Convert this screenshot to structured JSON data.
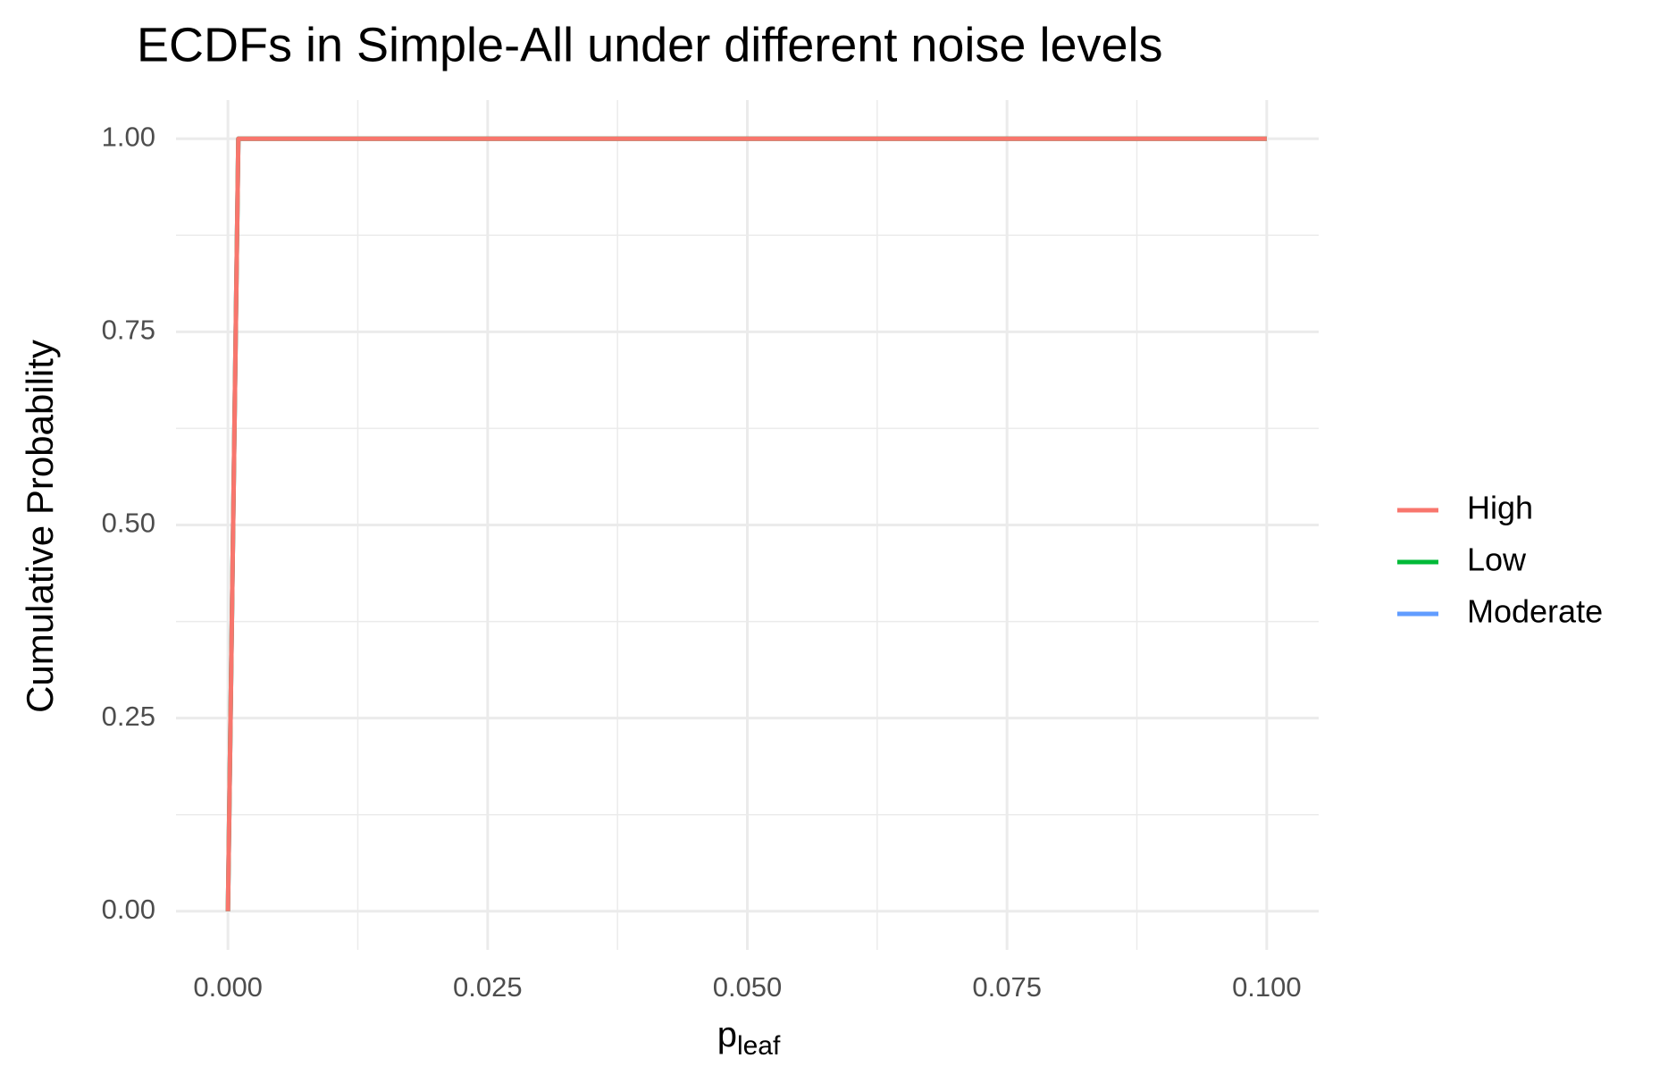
{
  "chart_data": {
    "type": "line",
    "title": "ECDFs in Simple-All under different noise levels",
    "xlabel": "p",
    "xlabel_subscript": "leaf",
    "ylabel": "Cumulative Probability",
    "x": [
      0,
      0.001,
      0.1
    ],
    "series": [
      {
        "name": "High",
        "color": "#f8766d",
        "values": [
          0,
          1,
          1
        ]
      },
      {
        "name": "Low",
        "color": "#00ba38",
        "values": [
          0,
          1,
          1
        ]
      },
      {
        "name": "Moderate",
        "color": "#619cff",
        "values": [
          0,
          1,
          1
        ]
      }
    ],
    "xlim": [
      -0.005,
      0.105
    ],
    "ylim": [
      -0.05,
      1.05
    ],
    "xticks": [
      {
        "value": 0,
        "label": "0.000"
      },
      {
        "value": 0.025,
        "label": "0.025"
      },
      {
        "value": 0.05,
        "label": "0.050"
      },
      {
        "value": 0.075,
        "label": "0.075"
      },
      {
        "value": 0.1,
        "label": "0.100"
      }
    ],
    "yticks": [
      {
        "value": 0,
        "label": "0.00"
      },
      {
        "value": 0.25,
        "label": "0.25"
      },
      {
        "value": 0.5,
        "label": "0.50"
      },
      {
        "value": 0.75,
        "label": "0.75"
      },
      {
        "value": 1,
        "label": "1.00"
      }
    ],
    "grid": true,
    "minor_grid": true,
    "legend": "right"
  }
}
